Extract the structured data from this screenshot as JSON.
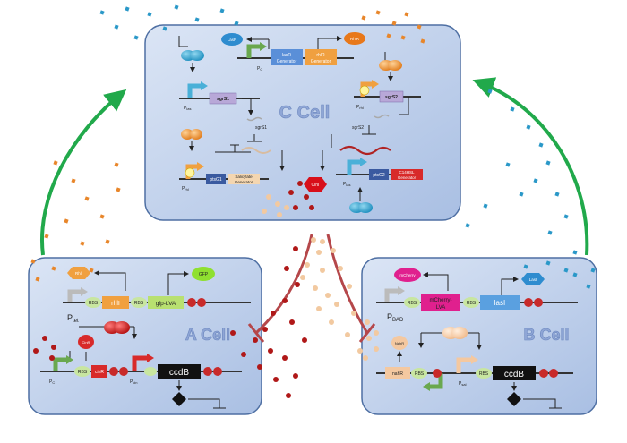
{
  "cells": {
    "c": {
      "title": "C Cell",
      "lasR": "LasR",
      "rhlR": "RhlR",
      "gen1_top": "lasR",
      "gen1_bot": "Generator",
      "gen2_top": "rhlR",
      "gen2_bot": "Generator",
      "pc": "P",
      "pc_sub": "C",
      "plas_left": "P",
      "plas_left_sub": "las",
      "sgrs1": "sgrS1",
      "sgrs1_rna": "sgrS1",
      "ptsg1": "ptsG1",
      "salicylate_top": "Salicylate",
      "salicylate_bot": "Generator",
      "prhl": "P",
      "prhl_sub": "rhl",
      "prhl2": "P",
      "prhl2_sub": "rhl",
      "sgrs2": "sgrS2",
      "sgrs2_rna": "sgrS2",
      "ptsg2": "ptsG2",
      "c14_top": "C14HSL",
      "c14_bot": "Generator",
      "plas2": "P",
      "plas2_sub": "las",
      "cinl": "CinI"
    },
    "a": {
      "title": "A Cell",
      "rhll_protein": "RhlI",
      "gfp_protein": "GFP",
      "rbs1": "RBS",
      "rhll_gene": "rhlI",
      "rbs2": "RBS",
      "gfp_gene": "gfp-LVA",
      "ptet": "P",
      "ptet_sub": "tet",
      "cinr_protein": "CinR",
      "rbs3": "RBS",
      "cinr_gene": "cinR",
      "pc": "P",
      "pc_sub": "C",
      "pcin": "P",
      "pcin_sub": "cin",
      "ccdb": "ccdB"
    },
    "b": {
      "title": "B Cell",
      "mcherry_protein": "mCherry",
      "lasl_protein": "LasI",
      "rbs1": "RBS",
      "mcherry_gene_top": "mCherry-",
      "mcherry_gene_bot": "LVA",
      "rbs2": "RBS",
      "lasl_gene": "lasI",
      "pbad": "P",
      "pbad_sub": "BAD",
      "nahr_protein": "NahR",
      "nahr_gene": "nahR",
      "rbs3": "RBS",
      "psal": "P",
      "psal_sub": "sal",
      "rbs4": "RBS",
      "ccdb": "ccdB"
    }
  },
  "colors": {
    "arrow_green": "#21a94b",
    "inhibit_red": "#b5474a",
    "cell_fill": "#c9d7ef",
    "cell_stroke": "#4e6fa3"
  }
}
